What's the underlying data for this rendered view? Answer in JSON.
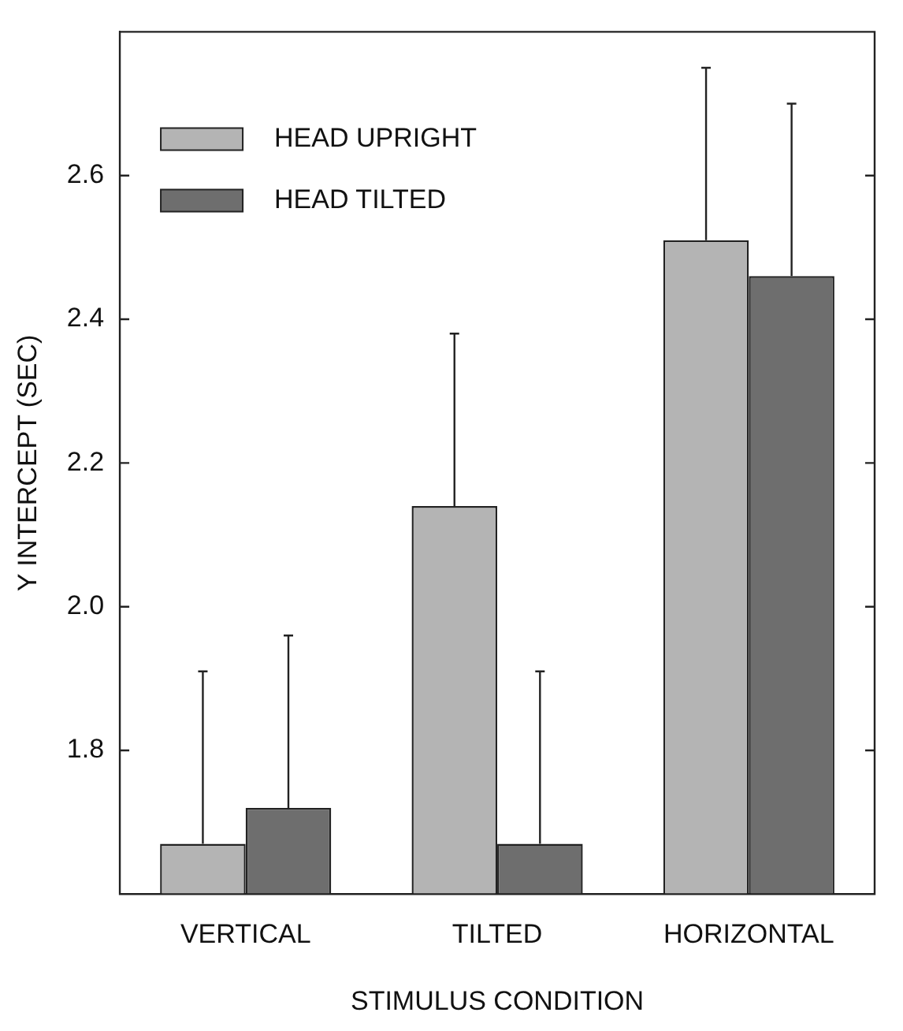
{
  "chart_data": {
    "type": "bar",
    "xlabel": "STIMULUS CONDITION",
    "ylabel": "Y INTERCEPT (SEC)",
    "categories": [
      "VERTICAL",
      "TILTED",
      "HORIZONTAL"
    ],
    "series": [
      {
        "name": "HEAD UPRIGHT",
        "color": "#b4b4b4",
        "values": [
          1.67,
          2.14,
          2.51
        ],
        "errors": [
          [
            1.67,
            1.91
          ],
          [
            2.14,
            2.38
          ],
          [
            2.51,
            2.75
          ]
        ]
      },
      {
        "name": "HEAD TILTED",
        "color": "#6e6e6e",
        "values": [
          1.72,
          1.67,
          2.46
        ],
        "errors": [
          [
            1.72,
            1.96
          ],
          [
            1.67,
            1.91
          ],
          [
            2.46,
            2.7
          ]
        ]
      }
    ],
    "ylim": [
      1.6,
      2.8
    ],
    "yticks": [
      1.8,
      {
        "value": 2.0,
        "label": "2.0"
      },
      2.2,
      2.4,
      2.6
    ],
    "grid": false,
    "legend": "top left"
  }
}
